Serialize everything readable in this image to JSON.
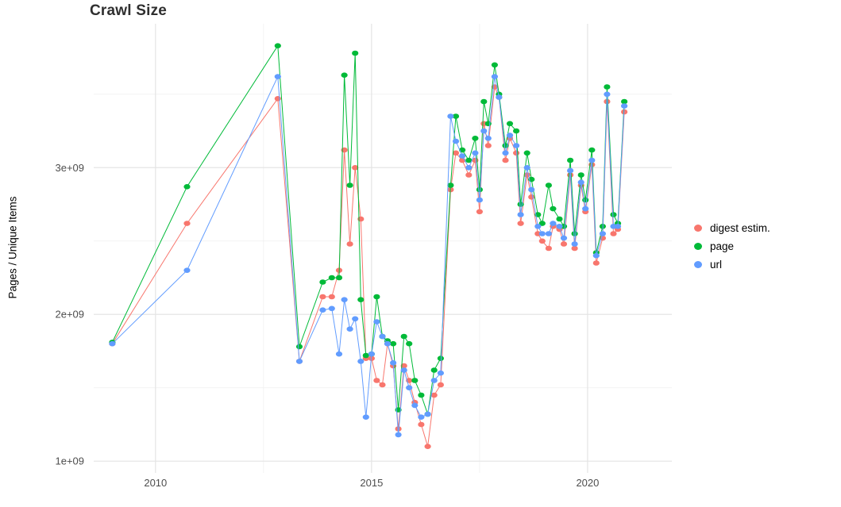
{
  "chart_data": {
    "type": "line",
    "title": "Crawl Size",
    "xlabel": "",
    "ylabel": "Pages / Unique Items",
    "values_unit": "1e9 (billions)",
    "y_unit_multiplier": 1000000000,
    "xlim": [
      2008.57,
      2021.95
    ],
    "ylim": [
      0.92,
      3.98
    ],
    "grid": true,
    "legend_position": "right",
    "x_ticks": {
      "values": [
        2010,
        2015,
        2020
      ],
      "labels": [
        "2010",
        "2015",
        "2020"
      ]
    },
    "x_minor": [
      2012.5,
      2017.5
    ],
    "y_ticks": {
      "values": [
        1,
        2,
        3
      ],
      "labels": [
        "1e+09",
        "2e+09",
        "3e+09"
      ]
    },
    "y_minor": [
      1.5,
      2.5,
      3.5
    ],
    "x": [
      2009.0,
      2010.73,
      2012.83,
      2013.33,
      2013.87,
      2014.08,
      2014.25,
      2014.37,
      2014.5,
      2014.62,
      2014.75,
      2014.87,
      2015.0,
      2015.12,
      2015.25,
      2015.37,
      2015.5,
      2015.62,
      2015.75,
      2015.87,
      2016.0,
      2016.15,
      2016.3,
      2016.45,
      2016.6,
      2016.83,
      2016.95,
      2017.1,
      2017.25,
      2017.4,
      2017.5,
      2017.6,
      2017.7,
      2017.85,
      2017.95,
      2018.1,
      2018.2,
      2018.35,
      2018.45,
      2018.6,
      2018.7,
      2018.85,
      2018.95,
      2019.1,
      2019.2,
      2019.35,
      2019.45,
      2019.6,
      2019.7,
      2019.85,
      2019.95,
      2020.1,
      2020.2,
      2020.35,
      2020.45,
      2020.6,
      2020.7,
      2020.85
    ],
    "series": [
      {
        "name": "digest estim.",
        "color": "#F8766D",
        "values": [
          1.8,
          2.62,
          3.47,
          1.68,
          2.12,
          2.12,
          2.3,
          3.12,
          2.48,
          3.0,
          2.65,
          1.7,
          1.7,
          1.55,
          1.52,
          1.8,
          1.65,
          1.22,
          1.65,
          1.55,
          1.4,
          1.25,
          1.1,
          1.45,
          1.52,
          2.85,
          3.1,
          3.05,
          2.95,
          3.05,
          2.7,
          3.3,
          3.15,
          3.55,
          3.48,
          3.05,
          3.2,
          3.1,
          2.62,
          2.95,
          2.8,
          2.55,
          2.5,
          2.45,
          2.6,
          2.58,
          2.48,
          2.95,
          2.45,
          2.88,
          2.7,
          3.02,
          2.35,
          2.52,
          3.45,
          2.55,
          2.58,
          3.38
        ]
      },
      {
        "name": "page",
        "color": "#00BA38",
        "values": [
          1.81,
          2.87,
          3.83,
          1.78,
          2.22,
          2.25,
          2.25,
          3.63,
          2.88,
          3.78,
          2.1,
          1.72,
          1.73,
          2.12,
          1.85,
          1.82,
          1.8,
          1.35,
          1.85,
          1.8,
          1.55,
          1.45,
          1.32,
          1.62,
          1.7,
          2.88,
          3.35,
          3.12,
          3.05,
          3.2,
          2.85,
          3.45,
          3.3,
          3.7,
          3.5,
          3.15,
          3.3,
          3.25,
          2.75,
          3.1,
          2.92,
          2.68,
          2.62,
          2.88,
          2.72,
          2.65,
          2.6,
          3.05,
          2.55,
          2.95,
          2.78,
          3.12,
          2.42,
          2.6,
          3.55,
          2.68,
          2.62,
          3.45
        ]
      },
      {
        "name": "url",
        "color": "#619CFF",
        "values": [
          1.8,
          2.3,
          3.62,
          1.68,
          2.03,
          2.04,
          1.73,
          2.1,
          1.9,
          1.97,
          1.68,
          1.3,
          1.73,
          1.95,
          1.85,
          1.8,
          1.67,
          1.18,
          1.62,
          1.5,
          1.38,
          1.3,
          1.32,
          1.55,
          1.6,
          3.35,
          3.18,
          3.08,
          3.0,
          3.1,
          2.78,
          3.25,
          3.2,
          3.62,
          3.48,
          3.1,
          3.22,
          3.15,
          2.68,
          3.0,
          2.85,
          2.6,
          2.55,
          2.55,
          2.62,
          2.6,
          2.52,
          2.98,
          2.48,
          2.9,
          2.72,
          3.05,
          2.4,
          2.55,
          3.5,
          2.6,
          2.6,
          3.42
        ]
      }
    ]
  }
}
